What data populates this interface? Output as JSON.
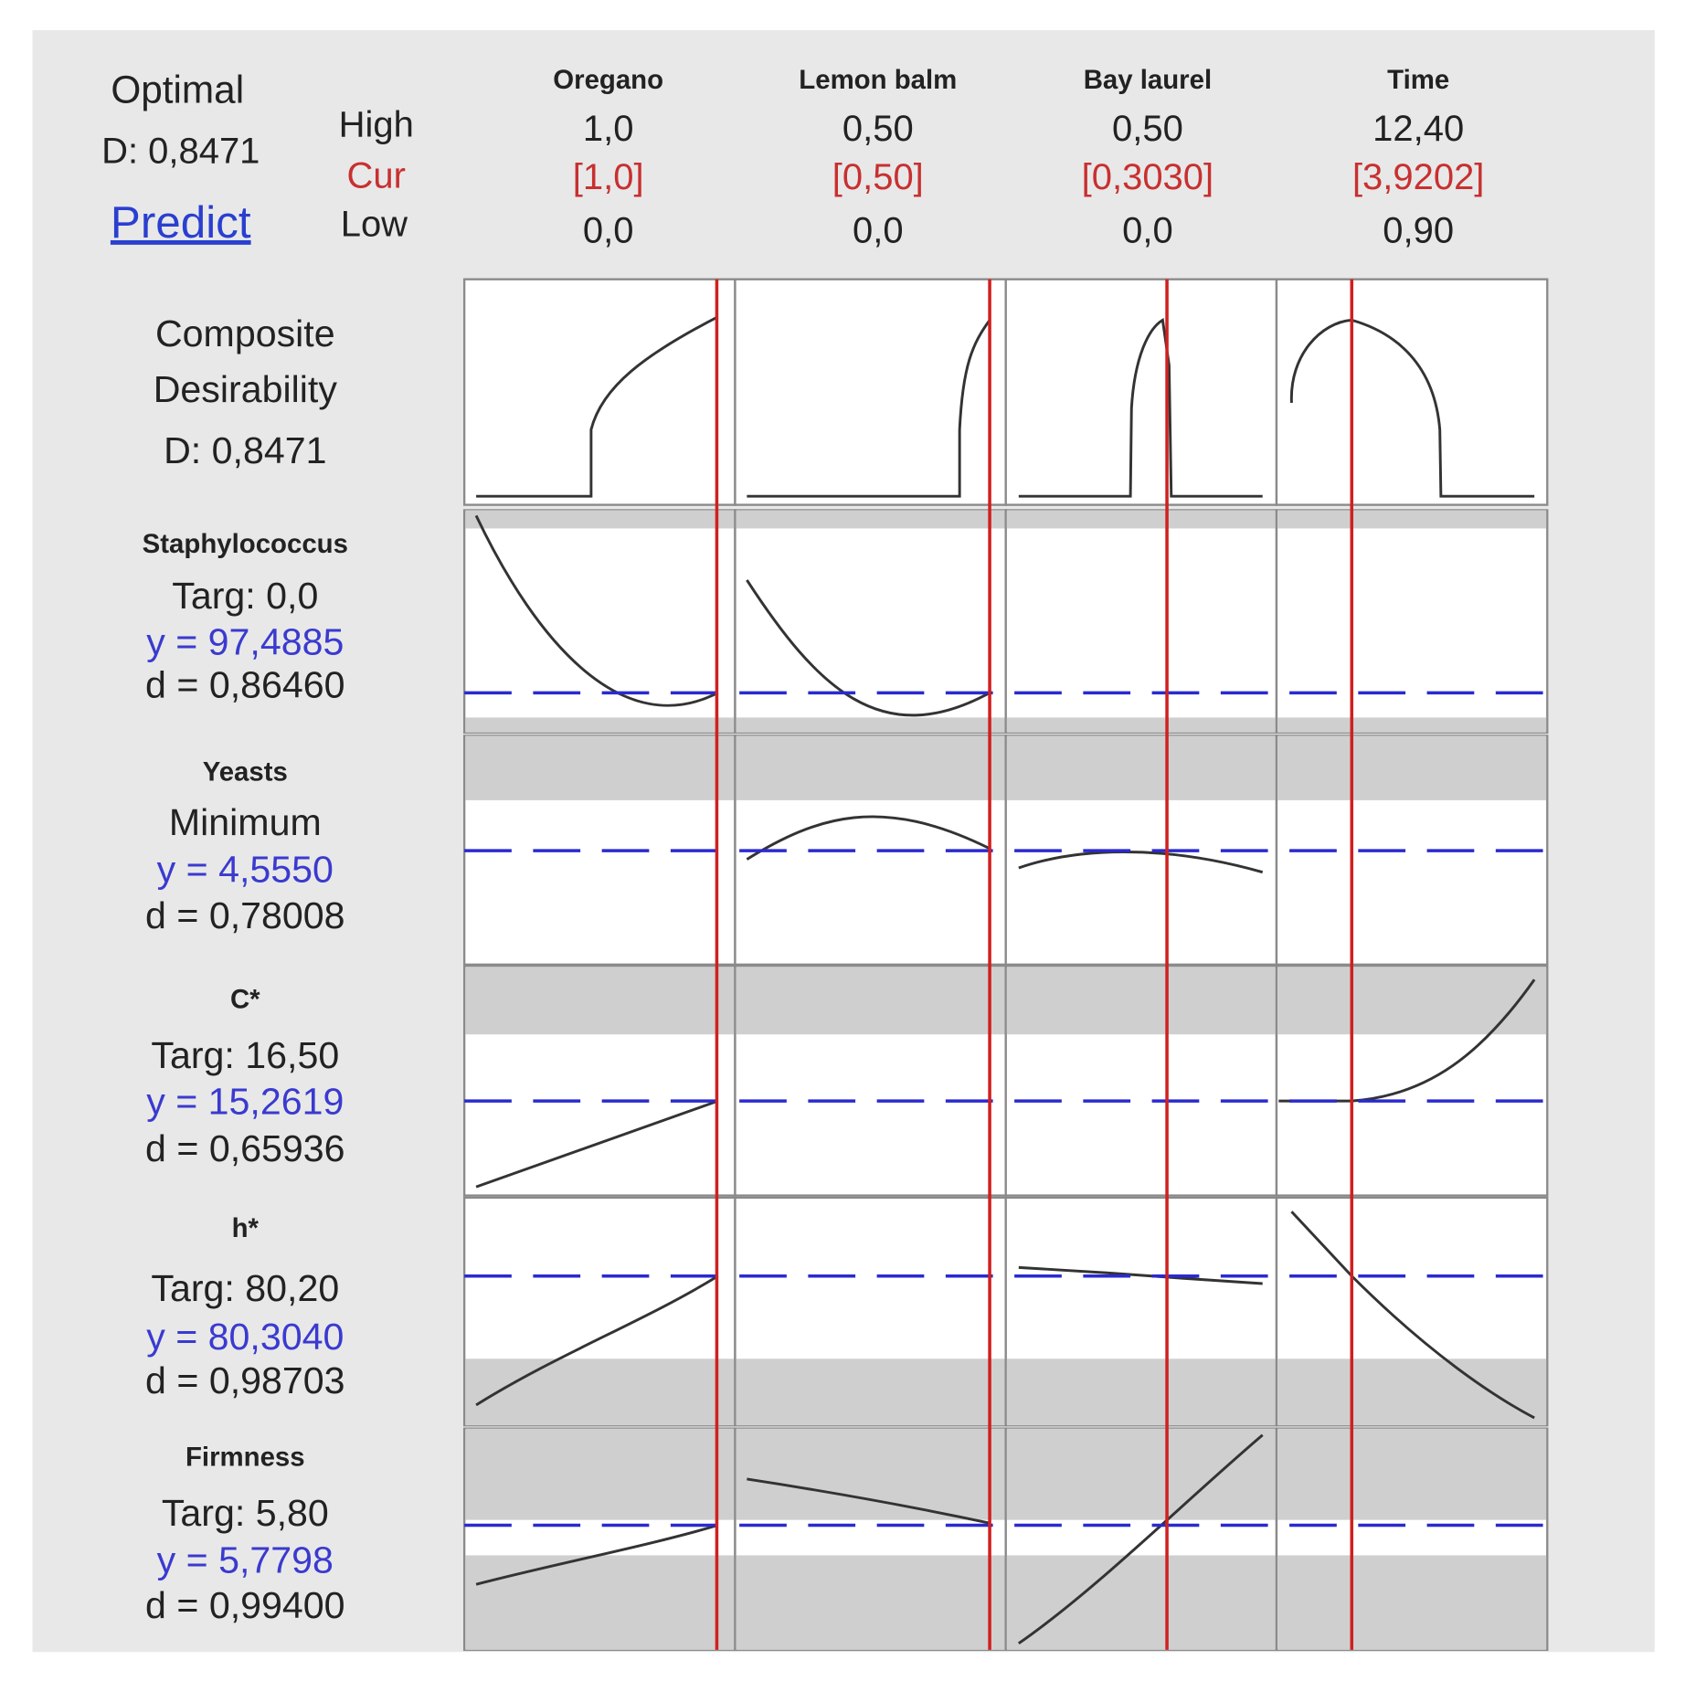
{
  "chart_data": {
    "type": "response-optimizer",
    "optimal_label": "Optimal",
    "optimal_d": "D: 0,8471",
    "predict": "Predict",
    "level_labels": {
      "high": "High",
      "cur": "Cur",
      "low": "Low"
    },
    "factors": [
      {
        "name": "Oregano",
        "high": "1,0",
        "cur": "[1,0]",
        "low": "0,0"
      },
      {
        "name": "Lemon balm",
        "high": "0,50",
        "cur": "[0,50]",
        "low": "0,0"
      },
      {
        "name": "Bay laurel",
        "high": "0,50",
        "cur": "[0,3030]",
        "low": "0,0"
      },
      {
        "name": "Time",
        "high": "12,40",
        "cur": "[3,9202]",
        "low": "0,90"
      }
    ],
    "composite": [
      "Composite",
      "Desirability",
      "D: 0,8471"
    ],
    "responses": [
      {
        "name": "Staphylococcus",
        "goal": "Targ: 0,0",
        "y": "y = 97,4885",
        "d": "d = 0,86460"
      },
      {
        "name": "Yeasts",
        "goal": "Minimum",
        "y": "y = 4,5550",
        "d": "d = 0,78008"
      },
      {
        "name": "C*",
        "goal": "Targ: 16,50",
        "y": "y = 15,2619",
        "d": "d = 0,65936"
      },
      {
        "name": "h*",
        "goal": "Targ: 80,20",
        "y": "y = 80,3040",
        "d": "d = 0,98703"
      },
      {
        "name": "Firmness",
        "goal": "Targ: 5,80",
        "y": "y = 5,7798",
        "d": "d = 0,99400"
      }
    ]
  }
}
